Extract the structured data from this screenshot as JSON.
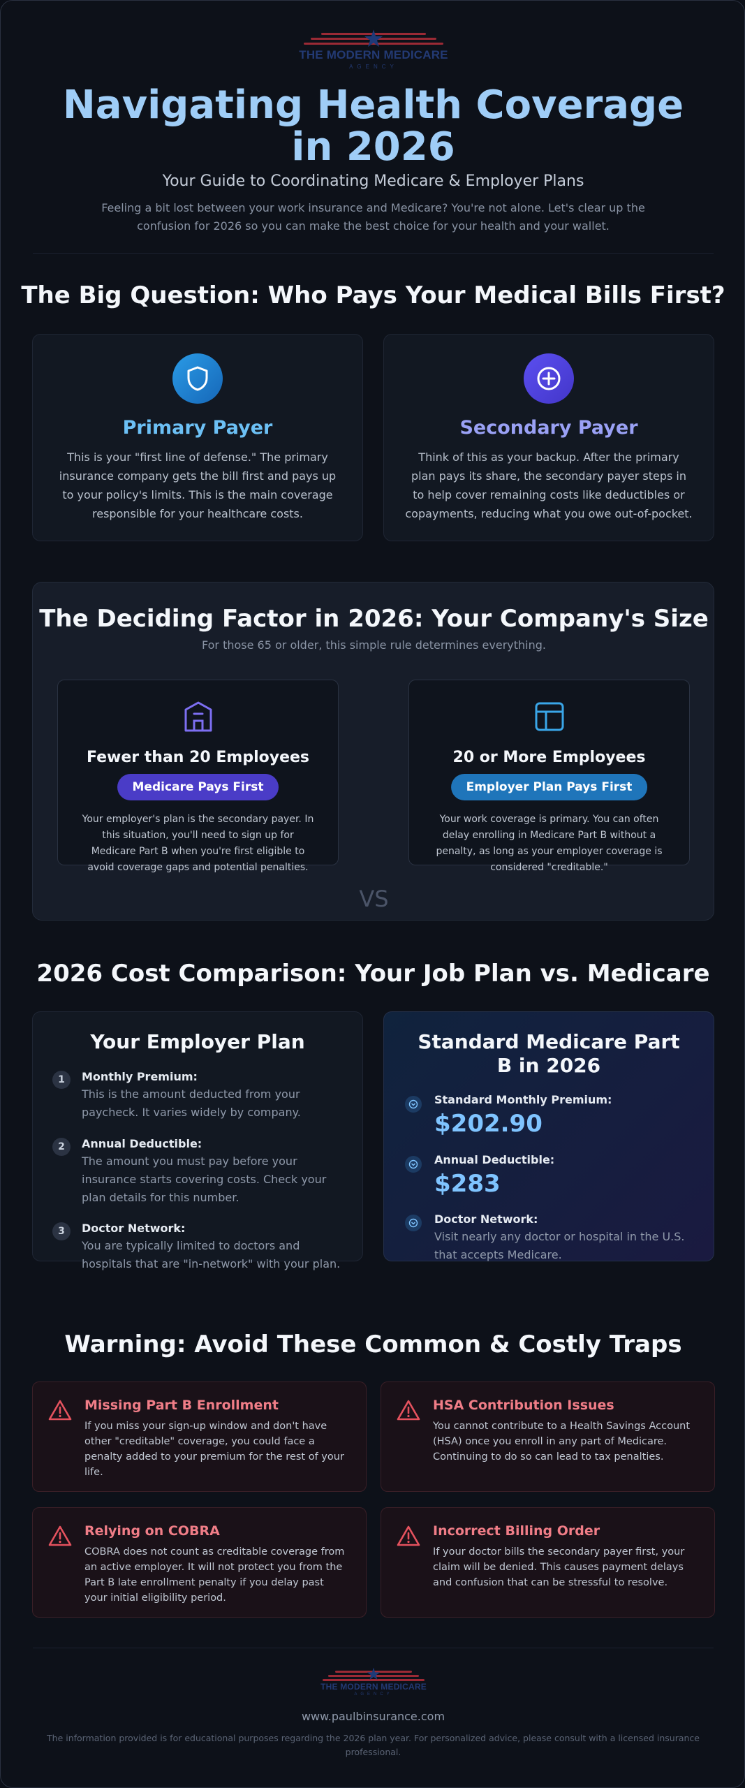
{
  "brand": {
    "name": "THE MODERN MEDICARE",
    "sub": "AGENCY"
  },
  "hero": {
    "title": "Navigating Health Coverage in 2026",
    "subtitle": "Your Guide to Coordinating Medicare & Employer Plans",
    "description": "Feeling a bit lost between your work insurance and Medicare? You're not alone. Let's clear up the confusion for 2026 so you can make the best choice for your health and your wallet."
  },
  "payers": {
    "heading": "The Big Question: Who Pays Your Medical Bills First?",
    "primary": {
      "title": "Primary Payer",
      "icon": "shield-icon",
      "color": "#6cc0f5",
      "text": "This is your \"first line of defense.\" The primary insurance company gets the bill first and pays up to your policy's limits. This is the main coverage responsible for your healthcare costs."
    },
    "secondary": {
      "title": "Secondary Payer",
      "icon": "plus-circle-icon",
      "color": "#9aa1f5",
      "text": "Think of this as your backup. After the primary plan pays its share, the secondary payer steps in to help cover remaining costs like deductibles or copayments, reducing what you owe out-of-pocket."
    }
  },
  "company_size": {
    "heading": "The Deciding Factor in 2026: Your Company's Size",
    "subheading": "For those 65 or older, this simple rule determines everything.",
    "vs": "VS",
    "small": {
      "title": "Fewer than 20 Employees",
      "icon": "building-icon",
      "badge": "Medicare Pays First",
      "text": "Your employer's plan is the secondary payer. In this situation, you'll need to sign up for Medicare Part B when you're first eligible to avoid coverage gaps and potential penalties."
    },
    "large": {
      "title": "20 or More Employees",
      "icon": "layout-icon",
      "badge": "Employer Plan Pays First",
      "text": "Your work coverage is primary. You can often delay enrolling in Medicare Part B without a penalty, as long as your employer coverage is considered \"creditable.\""
    }
  },
  "cost": {
    "heading": "2026 Cost Comparison: Your Job Plan vs. Medicare",
    "employer": {
      "title": "Your Employer Plan",
      "items": [
        {
          "num": "1",
          "label": "Monthly Premium:",
          "text": "This is the amount deducted from your paycheck. It varies widely by company."
        },
        {
          "num": "2",
          "label": "Annual Deductible:",
          "text": "The amount you must pay before your insurance starts covering costs. Check your plan details for this number."
        },
        {
          "num": "3",
          "label": "Doctor Network:",
          "text": "You are typically limited to doctors and hospitals that are \"in-network\" with your plan."
        }
      ]
    },
    "medicare": {
      "title": "Standard Medicare Part B in 2026",
      "items": [
        {
          "label": "Standard Monthly Premium:",
          "value": "$202.90"
        },
        {
          "label": "Annual Deductible:",
          "value": "$283"
        },
        {
          "label": "Doctor Network:",
          "text": "Visit nearly any doctor or hospital in the U.S. that accepts Medicare."
        }
      ]
    }
  },
  "traps": {
    "heading": "Warning: Avoid These Common & Costly Traps",
    "items": [
      {
        "title": "Missing Part B Enrollment",
        "text": "If you miss your sign-up window and don't have other \"creditable\" coverage, you could face a penalty added to your premium for the rest of your life."
      },
      {
        "title": "HSA Contribution Issues",
        "text": "You cannot contribute to a Health Savings Account (HSA) once you enroll in any part of Medicare. Continuing to do so can lead to tax penalties."
      },
      {
        "title": "Relying on COBRA",
        "text": "COBRA does not count as creditable coverage from an active employer. It will not protect you from the Part B late enrollment penalty if you delay past your initial eligibility period."
      },
      {
        "title": "Incorrect Billing Order",
        "text": "If your doctor bills the secondary payer first, your claim will be denied. This causes payment delays and confusion that can be stressful to resolve."
      }
    ]
  },
  "footer": {
    "url": "www.paulbinsurance.com",
    "disclaimer": "The information provided is for educational purposes regarding the 2026 plan year. For personalized advice, please consult with a licensed insurance professional."
  }
}
